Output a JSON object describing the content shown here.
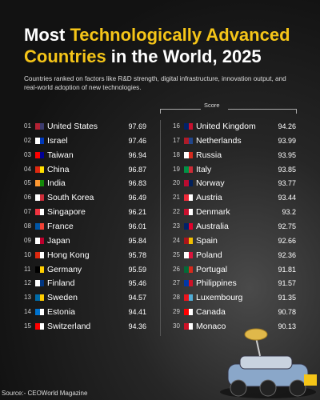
{
  "title": [
    {
      "text": "Most ",
      "highlight": false
    },
    {
      "text": "Technologically Advanced",
      "highlight": true
    },
    {
      "text": " Countries",
      "highlight": true
    },
    {
      "text": " in the World, 2025",
      "highlight": false
    }
  ],
  "highlight_color": "#f5c518",
  "subtitle": "Countries ranked on factors like R&D strength, digital infrastructure, innovation output, and real-world adoption of new technologies.",
  "score_header": "Score",
  "source": "Source:- CEOWorld Magazine",
  "rows": [
    {
      "rank": "01",
      "country": "United States",
      "score": 97.69,
      "flag": [
        "#b22234",
        "#3c3b6e"
      ]
    },
    {
      "rank": "02",
      "country": "Israel",
      "score": 97.46,
      "flag": [
        "#ffffff",
        "#0038b8"
      ]
    },
    {
      "rank": "03",
      "country": "Taiwan",
      "score": 96.94,
      "flag": [
        "#fe0000",
        "#000095"
      ]
    },
    {
      "rank": "04",
      "country": "China",
      "score": 96.87,
      "flag": [
        "#de2910",
        "#ffde00"
      ]
    },
    {
      "rank": "05",
      "country": "India",
      "score": 96.83,
      "flag": [
        "#ff9933",
        "#138808"
      ]
    },
    {
      "rank": "06",
      "country": "South Korea",
      "score": 96.49,
      "flag": [
        "#ffffff",
        "#cd2e3a"
      ]
    },
    {
      "rank": "07",
      "country": "Singapore",
      "score": 96.21,
      "flag": [
        "#ef3340",
        "#ffffff"
      ]
    },
    {
      "rank": "08",
      "country": "France",
      "score": 96.01,
      "flag": [
        "#0055a4",
        "#ef4135"
      ]
    },
    {
      "rank": "09",
      "country": "Japan",
      "score": 95.84,
      "flag": [
        "#ffffff",
        "#bc002d"
      ]
    },
    {
      "rank": "10",
      "country": "Hong Kong",
      "score": 95.78,
      "flag": [
        "#de2910",
        "#ffffff"
      ]
    },
    {
      "rank": "11",
      "country": "Germany",
      "score": 95.59,
      "flag": [
        "#000000",
        "#ffce00"
      ]
    },
    {
      "rank": "12",
      "country": "Finland",
      "score": 95.46,
      "flag": [
        "#ffffff",
        "#003580"
      ]
    },
    {
      "rank": "13",
      "country": "Sweden",
      "score": 94.57,
      "flag": [
        "#006aa7",
        "#fecc00"
      ]
    },
    {
      "rank": "14",
      "country": "Estonia",
      "score": 94.41,
      "flag": [
        "#0072ce",
        "#ffffff"
      ]
    },
    {
      "rank": "15",
      "country": "Switzerland",
      "score": 94.36,
      "flag": [
        "#ff0000",
        "#ffffff"
      ]
    },
    {
      "rank": "16",
      "country": "United Kingdom",
      "score": 94.26,
      "flag": [
        "#012169",
        "#c8102e"
      ]
    },
    {
      "rank": "17",
      "country": "Netherlands",
      "score": 93.99,
      "flag": [
        "#ae1c28",
        "#21468b"
      ]
    },
    {
      "rank": "18",
      "country": "Russia",
      "score": 93.95,
      "flag": [
        "#ffffff",
        "#d52b1e"
      ]
    },
    {
      "rank": "19",
      "country": "Italy",
      "score": 93.85,
      "flag": [
        "#009246",
        "#ce2b37"
      ]
    },
    {
      "rank": "20",
      "country": "Norway",
      "score": 93.77,
      "flag": [
        "#ba0c2f",
        "#00205b"
      ]
    },
    {
      "rank": "21",
      "country": "Austria",
      "score": 93.44,
      "flag": [
        "#ed2939",
        "#ffffff"
      ]
    },
    {
      "rank": "22",
      "country": "Denmark",
      "score": 93.2,
      "flag": [
        "#c8102e",
        "#ffffff"
      ]
    },
    {
      "rank": "23",
      "country": "Australia",
      "score": 92.75,
      "flag": [
        "#012169",
        "#e4002b"
      ]
    },
    {
      "rank": "24",
      "country": "Spain",
      "score": 92.66,
      "flag": [
        "#aa151b",
        "#f1bf00"
      ]
    },
    {
      "rank": "25",
      "country": "Poland",
      "score": 92.36,
      "flag": [
        "#ffffff",
        "#dc143c"
      ]
    },
    {
      "rank": "26",
      "country": "Portugal",
      "score": 91.81,
      "flag": [
        "#046a38",
        "#da291c"
      ]
    },
    {
      "rank": "27",
      "country": "Philippines",
      "score": 91.57,
      "flag": [
        "#0038a8",
        "#ce1126"
      ]
    },
    {
      "rank": "28",
      "country": "Luxembourg",
      "score": 91.35,
      "flag": [
        "#ea141d",
        "#51add6"
      ]
    },
    {
      "rank": "29",
      "country": "Canada",
      "score": 90.78,
      "flag": [
        "#ff0000",
        "#ffffff"
      ]
    },
    {
      "rank": "30",
      "country": "Monaco",
      "score": 90.13,
      "flag": [
        "#ce1126",
        "#ffffff"
      ]
    }
  ]
}
